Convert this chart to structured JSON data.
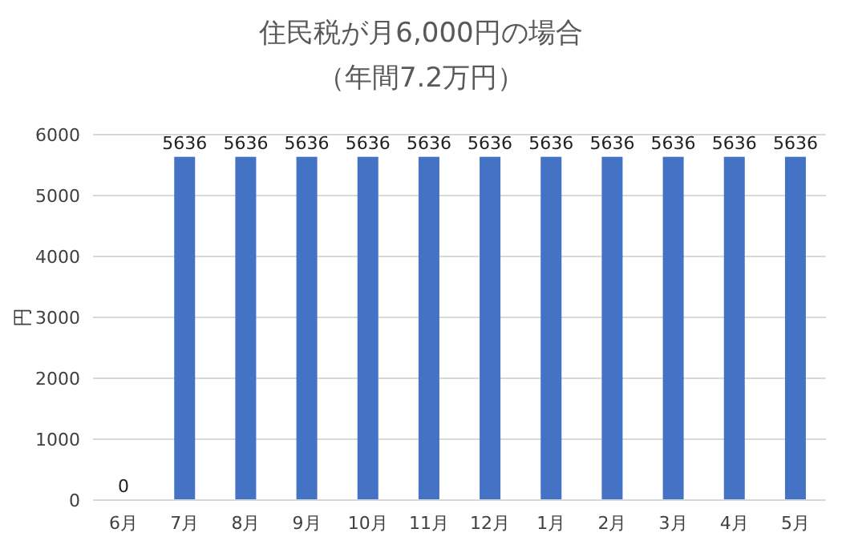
{
  "chart_data": {
    "type": "bar",
    "title": "住民税が月6,000円の場合",
    "subtitle": "（年間7.2万円）",
    "ylabel": "円",
    "categories": [
      "6月",
      "7月",
      "8月",
      "9月",
      "10月",
      "11月",
      "12月",
      "1月",
      "2月",
      "3月",
      "4月",
      "5月"
    ],
    "values": [
      0,
      5636,
      5636,
      5636,
      5636,
      5636,
      5636,
      5636,
      5636,
      5636,
      5636,
      5636
    ],
    "color": "#4472c4",
    "ylim": [
      0,
      6000
    ],
    "yticks": [
      0,
      1000,
      2000,
      3000,
      4000,
      5000,
      6000
    ],
    "grid": "y",
    "data_labels": true
  }
}
